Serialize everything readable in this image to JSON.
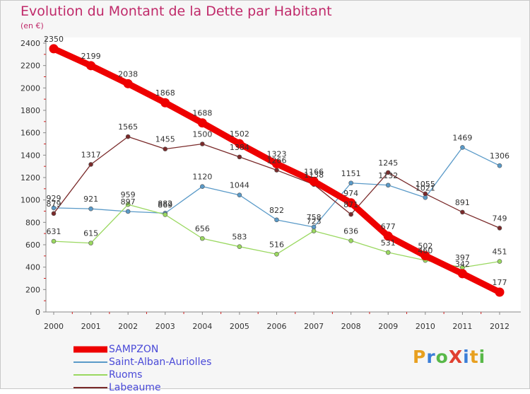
{
  "title": "Evolution du Montant de la Dette par Habitant",
  "unit_label": "(en €)",
  "logo_text": "ProXiti",
  "logo_colors": [
    "#e8a020",
    "#3b7ed8",
    "#58b848",
    "#e04030",
    "#3b7ed8",
    "#e8a020",
    "#58b848"
  ],
  "chart_data": {
    "type": "line",
    "title": "Evolution du Montant de la Dette par Habitant",
    "ylabel": "(en €)",
    "xlabel": "",
    "x": [
      "2000",
      "2001",
      "2002",
      "2003",
      "2004",
      "2005",
      "2006",
      "2007",
      "2008",
      "2009",
      "2010",
      "2011",
      "2012"
    ],
    "ylim": [
      0,
      2400
    ],
    "yticks": [
      0,
      200,
      400,
      600,
      800,
      1000,
      1200,
      1400,
      1600,
      1800,
      2000,
      2200,
      2400
    ],
    "grid": false,
    "legend_position": "bottom-left",
    "series": [
      {
        "name": "SAMPZON",
        "color": "#ee0000",
        "values": [
          2350,
          2199,
          2038,
          1868,
          1688,
          1502,
          1323,
          1166,
          974,
          677,
          502,
          342,
          177
        ]
      },
      {
        "name": "Saint-Alban-Auriolles",
        "color": "#5a9ac8",
        "values": [
          929,
          921,
          897,
          882,
          1120,
          1044,
          822,
          758,
          1151,
          1132,
          1021,
          1469,
          1306
        ]
      },
      {
        "name": "Ruoms",
        "color": "#9ad860",
        "values": [
          631,
          615,
          959,
          869,
          656,
          583,
          516,
          723,
          636,
          531,
          460,
          397,
          451
        ]
      },
      {
        "name": "Labeaume",
        "color": "#7a2a2a",
        "values": [
          879,
          1317,
          1565,
          1455,
          1500,
          1384,
          1266,
          1138,
          871,
          1245,
          1055,
          891,
          749
        ]
      }
    ],
    "labels": {
      "SAMPZON": [
        "2350",
        "2199",
        "2038",
        "1868",
        "1688",
        "1502",
        "1323",
        "1166",
        "974",
        "677",
        "502",
        "342",
        "177"
      ],
      "Saint-Alban-Auriolles": [
        "929",
        "921",
        "897",
        "882",
        "1120",
        "1044",
        "822",
        "758",
        "1151",
        "1132",
        "1021",
        "1469",
        "1306"
      ],
      "Ruoms": [
        "631",
        "615",
        "959",
        "869",
        "656",
        "583",
        "516",
        "723",
        "636",
        "531",
        "460",
        "397",
        "451"
      ],
      "Labeaume": [
        "879",
        "1317",
        "1565",
        "1455",
        "1500",
        "1384",
        "1266",
        "1138",
        "871",
        "1245",
        "1055",
        "891",
        "749"
      ]
    }
  }
}
